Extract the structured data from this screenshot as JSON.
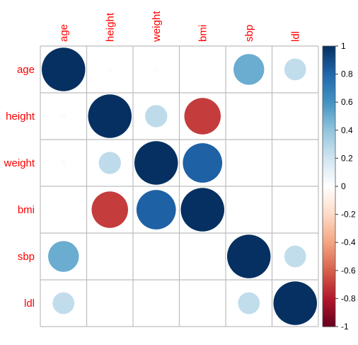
{
  "chart_data": {
    "type": "heatmap",
    "variables": [
      "age",
      "height",
      "weight",
      "bmi",
      "sbp",
      "ldl"
    ],
    "matrix": [
      [
        1.0,
        0.02,
        0.02,
        0.01,
        0.5,
        0.25
      ],
      [
        0.02,
        1.0,
        0.26,
        -0.7,
        0.01,
        0.01
      ],
      [
        0.02,
        0.26,
        1.0,
        0.82,
        0.01,
        0.01
      ],
      [
        0.01,
        -0.7,
        0.82,
        1.0,
        0.01,
        0.01
      ],
      [
        0.5,
        0.01,
        0.01,
        0.01,
        1.0,
        0.25
      ],
      [
        0.25,
        0.01,
        0.01,
        0.01,
        0.25,
        1.0
      ]
    ],
    "colorbar": {
      "min": -1,
      "max": 1,
      "ticks": [
        "1",
        "0.8",
        "0.6",
        "0.4",
        "0.2",
        "0",
        "-0.2",
        "-0.4",
        "-0.6",
        "-0.8",
        "-1"
      ]
    },
    "label_color": "#ff0000",
    "gradient": [
      "#67001f",
      "#b2182b",
      "#d6604d",
      "#f4a582",
      "#fddbc7",
      "#ffffff",
      "#d1e5f0",
      "#92c5de",
      "#4393c3",
      "#2166ac",
      "#053061"
    ],
    "grid": true
  }
}
